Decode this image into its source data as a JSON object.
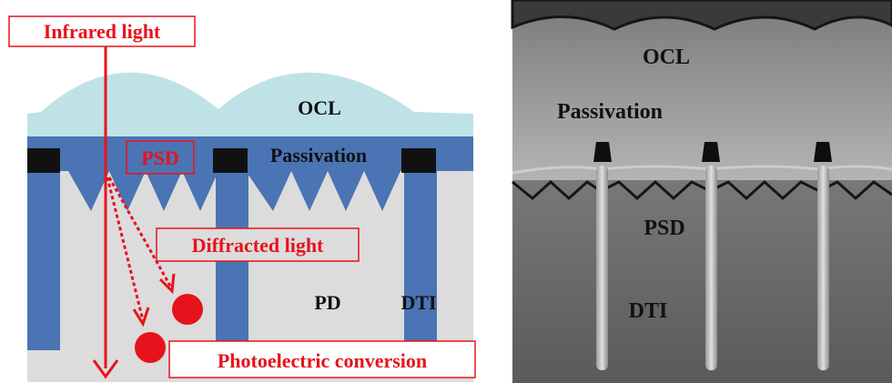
{
  "left_panel": {
    "labels": {
      "infrared": "Infrared light",
      "ocl": "OCL",
      "psd": "PSD",
      "passivation": "Passivation",
      "diffracted": "Diffracted light",
      "pd": "PD",
      "dti": "DTI",
      "photoelectric": "Photoelectric conversion"
    },
    "colors": {
      "accent_red": "#e8121c",
      "ocl": "#bfe2e6",
      "passivation_blue": "#4a74b4",
      "substrate": "#dcdcdc",
      "metal_black": "#111111"
    }
  },
  "right_panel": {
    "labels": {
      "ocl": "OCL",
      "passivation": "Passivation",
      "psd": "PSD",
      "dti": "DTI"
    }
  }
}
